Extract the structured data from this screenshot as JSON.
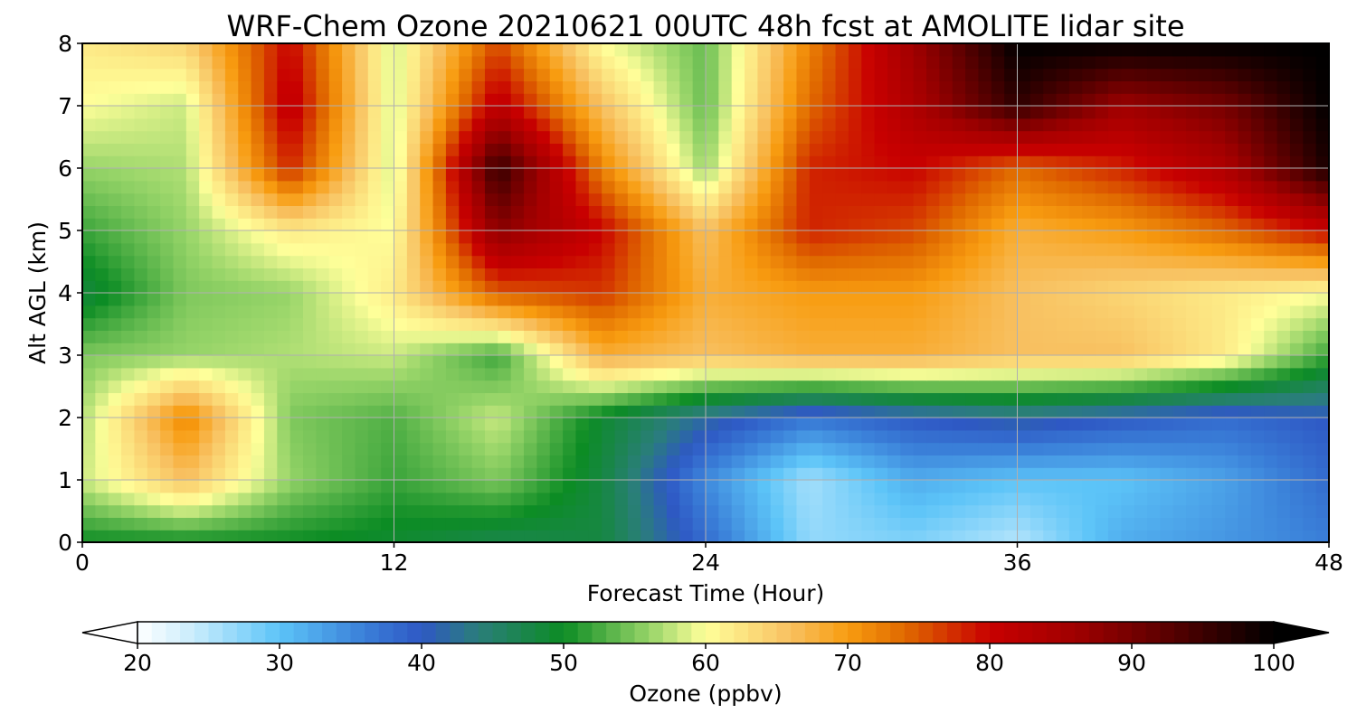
{
  "chart_data": {
    "type": "heatmap",
    "title": "WRF-Chem Ozone  20210621 00UTC 48h fcst at AMOLITE lidar site",
    "xlabel": "Forecast Time (Hour)",
    "ylabel": "Alt AGL (km)",
    "xlim": [
      0,
      48
    ],
    "ylim": [
      0,
      8
    ],
    "x_ticks": [
      "0",
      "12",
      "24",
      "36",
      "48"
    ],
    "y_ticks": [
      "0",
      "1",
      "2",
      "3",
      "4",
      "5",
      "6",
      "7",
      "8"
    ],
    "grid": true,
    "x": [
      0,
      4,
      8,
      12,
      16,
      20,
      24,
      28,
      32,
      36,
      40,
      44,
      48
    ],
    "y": [
      0,
      1,
      2,
      3,
      4,
      5,
      6,
      7,
      8
    ],
    "z": [
      [
        50,
        50,
        50,
        49,
        47,
        48,
        38,
        27,
        28,
        25,
        32,
        34,
        36
      ],
      [
        58,
        66,
        56,
        52,
        55,
        48,
        35,
        26,
        32,
        30,
        30,
        33,
        38
      ],
      [
        57,
        72,
        55,
        53,
        58,
        49,
        42,
        37,
        40,
        42,
        40,
        38,
        40
      ],
      [
        55,
        56,
        57,
        58,
        52,
        68,
        66,
        68,
        68,
        66,
        66,
        62,
        52
      ],
      [
        48,
        55,
        56,
        62,
        75,
        77,
        68,
        70,
        70,
        66,
        64,
        62,
        60
      ],
      [
        52,
        56,
        62,
        60,
        88,
        80,
        66,
        78,
        76,
        68,
        70,
        74,
        80
      ],
      [
        56,
        57,
        78,
        58,
        96,
        72,
        56,
        78,
        80,
        74,
        78,
        84,
        98
      ],
      [
        60,
        58,
        82,
        58,
        82,
        66,
        54,
        74,
        84,
        96,
        86,
        90,
        100
      ],
      [
        62,
        64,
        80,
        58,
        76,
        60,
        54,
        72,
        86,
        100,
        100,
        100,
        100
      ]
    ],
    "colorbar": {
      "label": "Ozone  (ppbv)",
      "ticks": [
        "20",
        "30",
        "40",
        "50",
        "60",
        "70",
        "80",
        "90",
        "100"
      ],
      "range": [
        20,
        100
      ],
      "extend": "both",
      "stops": [
        [
          20,
          "#ffffff"
        ],
        [
          24,
          "#c8ecfc"
        ],
        [
          30,
          "#5cc4f8"
        ],
        [
          36,
          "#3a7fd8"
        ],
        [
          40,
          "#2e58c4"
        ],
        [
          44,
          "#2a7e7a"
        ],
        [
          50,
          "#0c8c24"
        ],
        [
          56,
          "#96d468"
        ],
        [
          60,
          "#ffff9a"
        ],
        [
          66,
          "#f8c060"
        ],
        [
          70,
          "#f89c10"
        ],
        [
          74,
          "#e06a00"
        ],
        [
          80,
          "#c80000"
        ],
        [
          86,
          "#a00000"
        ],
        [
          92,
          "#600000"
        ],
        [
          100,
          "#000000"
        ]
      ]
    }
  }
}
